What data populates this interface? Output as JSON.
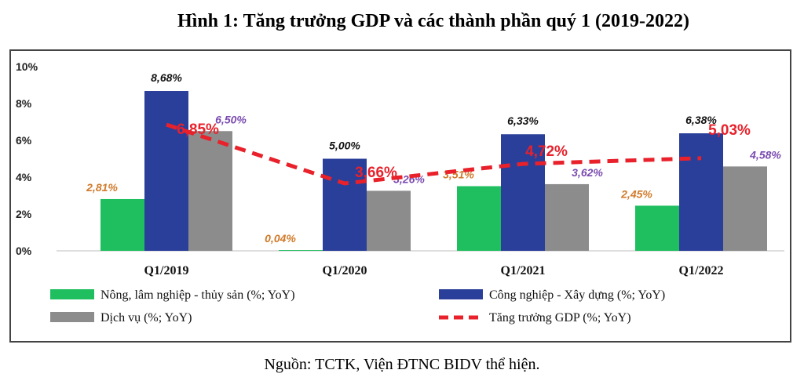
{
  "title": "Hình 1: Tăng trưởng GDP và các thành phần quý 1 (2019-2022)",
  "source": "Nguồn: TCTK, Viện ĐTNC BIDV thể hiện.",
  "chart_data": {
    "type": "bar",
    "categories": [
      "Q1/2019",
      "Q1/2020",
      "Q1/2021",
      "Q1/2022"
    ],
    "ylim": [
      0,
      10
    ],
    "yticks": [
      "0%",
      "2%",
      "4%",
      "6%",
      "8%",
      "10%"
    ],
    "yticks_values": [
      0,
      2,
      4,
      6,
      8,
      10
    ],
    "series": [
      {
        "name": "Nông, lâm nghiệp - thủy sản (%; YoY)",
        "type": "bar",
        "color": "#1fbf5f",
        "label_color": "#d07a2a",
        "values": [
          2.81,
          0.04,
          3.51,
          2.45
        ],
        "labels": [
          "2,81%",
          "0,04%",
          "3,51%",
          "2,45%"
        ]
      },
      {
        "name": "Công nghiệp - Xây dựng (%; YoY)",
        "type": "bar",
        "color": "#2a3f9a",
        "label_color": "#111111",
        "values": [
          8.68,
          5.0,
          6.33,
          6.38
        ],
        "labels": [
          "8,68%",
          "5,00%",
          "6,33%",
          "6,38%"
        ]
      },
      {
        "name": "Dịch vụ (%; YoY)",
        "type": "bar",
        "color": "#8c8c8c",
        "label_color": "#7a4bb0",
        "values": [
          6.5,
          3.26,
          3.62,
          4.58
        ],
        "labels": [
          "6,50%",
          "3,26%",
          "3,62%",
          "4,58%"
        ]
      },
      {
        "name": "Tăng trưởng GDP (%; YoY)",
        "type": "line",
        "color": "#e8212b",
        "label_color": "#e8212b",
        "values": [
          6.85,
          3.66,
          4.72,
          5.03
        ],
        "labels": [
          "6,85%",
          "3,66%",
          "4,72%",
          "5,03%"
        ]
      }
    ]
  }
}
